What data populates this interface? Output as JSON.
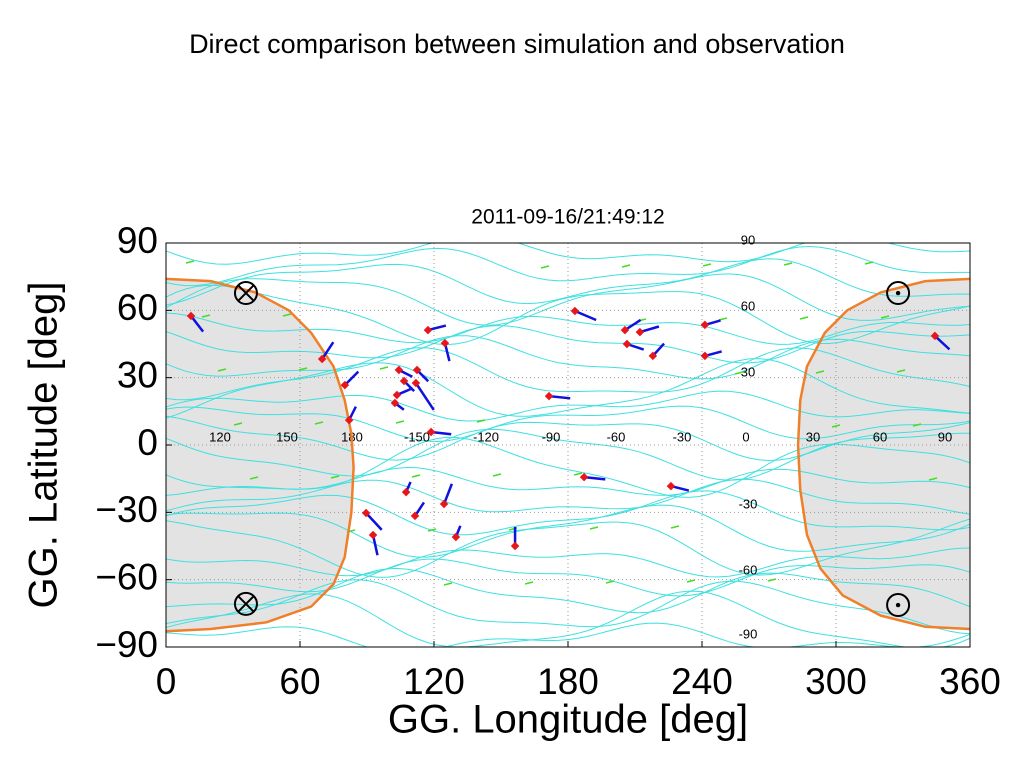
{
  "chart_data": {
    "type": "scatter",
    "title": "Direct comparison between simulation and observation",
    "subtitle": "2011-09-16/21:49:12",
    "x_label": "GG. Longitude [deg]",
    "y_label": "GG. Latitude [deg]",
    "xlim": [
      0,
      360
    ],
    "ylim": [
      -90,
      90
    ],
    "xticks": [
      0,
      60,
      120,
      180,
      240,
      300,
      360
    ],
    "yticks": [
      90,
      60,
      30,
      0,
      {
        "value": -30,
        "label": "−30"
      },
      {
        "value": -60,
        "label": "−60"
      },
      {
        "value": -90,
        "label": "−90"
      }
    ],
    "grid": true,
    "magnetic_longitude_labels": [
      "120",
      "150",
      "180",
      "-150",
      "-120",
      "-90",
      "-60",
      "-30",
      "0",
      "30",
      "60",
      "90"
    ],
    "magnetic_latitude_labels": [
      "90",
      "60",
      "30",
      "-30",
      "-60",
      "-90"
    ],
    "stations": {
      "color": "#e8161b",
      "vector_color": "#1010e0",
      "lon": [
        11.2,
        69.9,
        80.1,
        82.0,
        89.6,
        92.7,
        104.3,
        103.4,
        102.5,
        106.6,
        111.9,
        112.4,
        117.3,
        124.9,
        118.7,
        107.5,
        111.5,
        124.5,
        129.8,
        156.3,
        171.5,
        183.1,
        187.2,
        205.5,
        206.4,
        212.2,
        218.0,
        226.1,
        241.3,
        241.3,
        344.3
      ],
      "lat": [
        57.5,
        38.3,
        26.7,
        11.1,
        -30.3,
        -40.1,
        33.4,
        22.3,
        18.7,
        28.5,
        27.6,
        33.4,
        51.2,
        45.4,
        5.8,
        -21.0,
        -31.6,
        -26.3,
        -41.0,
        -45.0,
        21.8,
        59.7,
        -14.3,
        51.2,
        45.0,
        50.3,
        39.7,
        -18.3,
        53.5,
        39.7,
        48.6
      ],
      "dlon": [
        5.4,
        5,
        6,
        3,
        7,
        2,
        6,
        7,
        4,
        4.5,
        8,
        5,
        8,
        2,
        9,
        2,
        4,
        3.5,
        2,
        0,
        9.5,
        9.5,
        9.5,
        7,
        7.5,
        8.5,
        5,
        8,
        7,
        7.5,
        6.5
      ],
      "dlat": [
        -7,
        7.5,
        6,
        6,
        -7.5,
        -9,
        -3,
        3,
        -3,
        -4.5,
        -12,
        -5,
        2,
        -8,
        -1,
        4.5,
        6,
        9,
        5,
        8.5,
        -1,
        -4,
        -1,
        4.5,
        -2.5,
        2.5,
        5.5,
        -2,
        2,
        2,
        -6
      ]
    },
    "terminator": {
      "color": "#f07f2a",
      "night_color": "#e3e3e3",
      "x": [
        0,
        20,
        40,
        55,
        65,
        75,
        80,
        83,
        84,
        83,
        80,
        75,
        65,
        45,
        20,
        0,
        null,
        360,
        340,
        320,
        305,
        295,
        287,
        284,
        283,
        284,
        287,
        293,
        303,
        320,
        340,
        360
      ],
      "y": [
        74,
        73,
        68,
        60,
        50,
        35,
        20,
        5,
        -10,
        -30,
        -50,
        -62,
        -72,
        -79,
        -82,
        -83,
        null,
        74,
        73,
        68,
        60,
        50,
        35,
        20,
        0,
        -20,
        -40,
        -55,
        -67,
        -76,
        -81,
        -82
      ]
    },
    "cross_markers": {
      "x": [
        35.8,
        35.8
      ],
      "y": [
        67.7,
        -70.8
      ]
    },
    "dot_markers": {
      "x": [
        327.8,
        327.8
      ],
      "y": [
        67.7,
        -71.3
      ]
    }
  }
}
